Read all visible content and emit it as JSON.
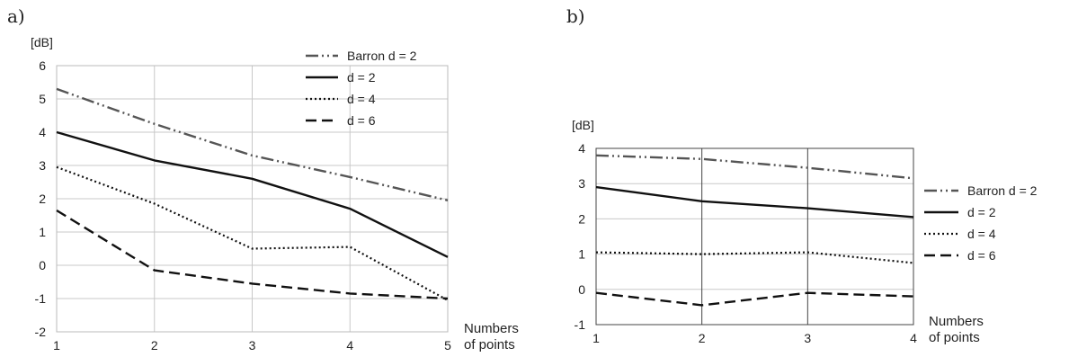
{
  "panels": [
    {
      "label": "a)"
    },
    {
      "label": "b)"
    }
  ],
  "chart_data": [
    {
      "type": "line",
      "ylabel": "[dB]",
      "xlabel_lines": [
        "Numbers",
        "of points"
      ],
      "x": [
        1,
        2,
        3,
        4,
        5
      ],
      "xticks": [
        "1",
        "2",
        "3",
        "4",
        "5"
      ],
      "ylim": [
        -2,
        6
      ],
      "yticks": [
        "-2",
        "-1",
        "0",
        "1",
        "2",
        "3",
        "4",
        "5",
        "6"
      ],
      "grid": true,
      "legend_position": "top-right",
      "series": [
        {
          "name": "Barron d = 2",
          "values": [
            5.3,
            4.25,
            3.3,
            2.65,
            1.95
          ],
          "color": "#555555",
          "style": "dashdotdot"
        },
        {
          "name": "d = 2",
          "values": [
            4.0,
            3.15,
            2.6,
            1.7,
            0.25
          ],
          "color": "#111111",
          "style": "solid"
        },
        {
          "name": "d = 4",
          "values": [
            2.95,
            1.85,
            0.5,
            0.55,
            -1.05
          ],
          "color": "#111111",
          "style": "dotted"
        },
        {
          "name": "d = 6",
          "values": [
            1.65,
            -0.15,
            -0.55,
            -0.85,
            -1.0
          ],
          "color": "#111111",
          "style": "dashed"
        }
      ]
    },
    {
      "type": "line",
      "ylabel": "[dB]",
      "xlabel_lines": [
        "Numbers",
        "of points"
      ],
      "x": [
        1,
        2,
        3,
        4
      ],
      "xticks": [
        "1",
        "2",
        "3",
        "4"
      ],
      "ylim": [
        -1,
        4
      ],
      "yticks": [
        "-1",
        "0",
        "1",
        "2",
        "3",
        "4"
      ],
      "grid": true,
      "legend_position": "right",
      "series": [
        {
          "name": "Barron d = 2",
          "values": [
            3.8,
            3.7,
            3.45,
            3.15
          ],
          "color": "#555555",
          "style": "dashdotdot"
        },
        {
          "name": "d = 2",
          "values": [
            2.9,
            2.5,
            2.3,
            2.05
          ],
          "color": "#111111",
          "style": "solid"
        },
        {
          "name": "d = 4",
          "values": [
            1.05,
            1.0,
            1.05,
            0.75
          ],
          "color": "#111111",
          "style": "dotted"
        },
        {
          "name": "d = 6",
          "values": [
            -0.1,
            -0.45,
            -0.1,
            -0.2
          ],
          "color": "#111111",
          "style": "dashed"
        }
      ]
    }
  ]
}
